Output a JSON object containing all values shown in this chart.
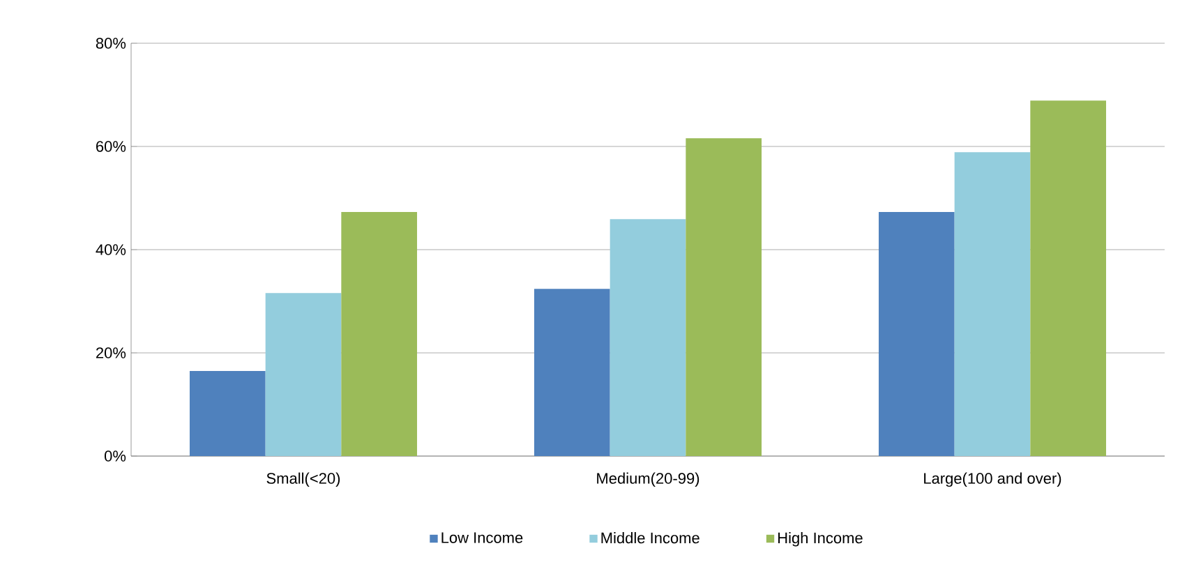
{
  "chart_data": {
    "type": "bar",
    "categories": [
      "Small(<20)",
      "Medium(20-99)",
      "Large(100 and over)"
    ],
    "series": [
      {
        "name": "Low Income",
        "color": "#4f81bd",
        "values": [
          16.5,
          32.4,
          47.3
        ]
      },
      {
        "name": "Middle Income",
        "color": "#93cddd",
        "values": [
          31.6,
          45.9,
          58.9
        ]
      },
      {
        "name": "High Income",
        "color": "#9bbb59",
        "values": [
          47.3,
          61.6,
          68.9
        ]
      }
    ],
    "ylim": [
      0,
      80
    ],
    "yticks": [
      {
        "value": 0,
        "label": "0%"
      },
      {
        "value": 20,
        "label": "20%"
      },
      {
        "value": 40,
        "label": "40%"
      },
      {
        "value": 60,
        "label": "60%"
      },
      {
        "value": 80,
        "label": "80%"
      }
    ],
    "grid": "y",
    "legend": "bottom"
  }
}
